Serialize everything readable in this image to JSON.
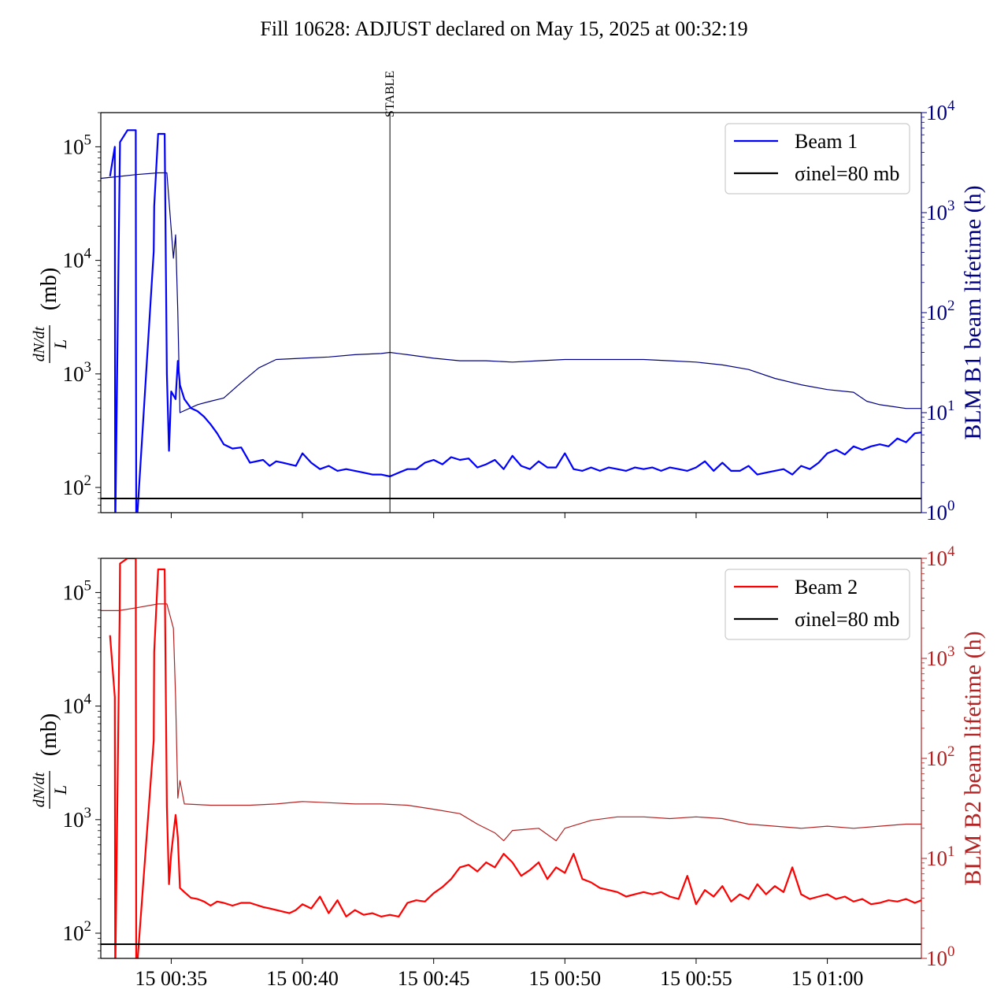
{
  "figure": {
    "title": "Fill 10628: ADJUST declared on May 15, 2025 at 00:32:19"
  },
  "colors": {
    "beam1": "#0000ff",
    "beam1_lifetime": "#000080",
    "beam2": "#ff0000",
    "beam2_lifetime": "#b22222",
    "reference": "#000000"
  },
  "chart_data": [
    {
      "type": "line",
      "panel": "top",
      "yscale": "log",
      "ylabel": "dN/dt / L (mb)",
      "ylim": [
        60,
        200000
      ],
      "y_ticks": [
        100,
        1000,
        10000,
        100000
      ],
      "y_tick_labels": [
        "10^2",
        "10^3",
        "10^4",
        "10^5"
      ],
      "y2label": "BLM B1 beam lifetime (h)",
      "y2scale": "log",
      "y2lim": [
        1,
        10000
      ],
      "y2_ticks": [
        1,
        10,
        100,
        1000,
        10000
      ],
      "y2_tick_labels": [
        "10^0",
        "10^1",
        "10^2",
        "10^3",
        "10^4"
      ],
      "xlim": [
        "00:32:19",
        "01:03:35"
      ],
      "x_ticks": [
        "00:35:00",
        "00:40:00",
        "00:45:00",
        "00:50:00",
        "00:55:00",
        "01:00:00"
      ],
      "x_tick_labels": [],
      "grid": false,
      "legend_position": "top-right",
      "vline": {
        "x": "00:43:20",
        "label": "STABLE"
      },
      "hline": {
        "y": 80,
        "name": "σinel=80 mb"
      },
      "legend": [
        {
          "label": "Beam 1",
          "color": "#0000ff"
        },
        {
          "label": "σinel=80 mb",
          "color": "#000000"
        }
      ],
      "series": [
        {
          "name": "Beam 1",
          "axis": "left",
          "color": "#0000ff",
          "x": [
            "00:32:40",
            "00:32:51",
            "00:32:52",
            "00:33:02",
            "00:33:03",
            "00:33:20",
            "00:33:39",
            "00:33:40",
            "00:34:20",
            "00:34:21",
            "00:34:30",
            "00:34:45",
            "00:34:50",
            "00:34:55",
            "00:35:00",
            "00:35:10",
            "00:35:15",
            "00:35:20",
            "00:35:30",
            "00:35:45",
            "00:36:00",
            "00:36:15",
            "00:36:30",
            "00:36:45",
            "00:37:00",
            "00:37:20",
            "00:37:40",
            "00:38:00",
            "00:38:30",
            "00:38:45",
            "00:39:00",
            "00:39:15",
            "00:39:30",
            "00:39:45",
            "00:40:00",
            "00:40:20",
            "00:40:40",
            "00:41:00",
            "00:41:20",
            "00:41:40",
            "00:42:00",
            "00:42:20",
            "00:42:40",
            "00:43:00",
            "00:43:20",
            "00:43:40",
            "00:44:00",
            "00:44:20",
            "00:44:40",
            "00:45:00",
            "00:45:20",
            "00:45:40",
            "00:46:00",
            "00:46:20",
            "00:46:40",
            "00:47:00",
            "00:47:20",
            "00:47:40",
            "00:48:00",
            "00:48:20",
            "00:48:40",
            "00:49:00",
            "00:49:20",
            "00:49:40",
            "00:50:00",
            "00:50:20",
            "00:50:40",
            "00:51:00",
            "00:51:20",
            "00:51:40",
            "00:52:00",
            "00:52:20",
            "00:52:40",
            "00:53:00",
            "00:53:20",
            "00:53:40",
            "00:54:00",
            "00:54:20",
            "00:54:40",
            "00:55:00",
            "00:55:20",
            "00:55:40",
            "00:56:00",
            "00:56:20",
            "00:56:40",
            "00:57:00",
            "00:57:20",
            "00:57:40",
            "00:58:00",
            "00:58:20",
            "00:58:40",
            "00:59:00",
            "00:59:20",
            "00:59:40",
            "01:00:00",
            "01:00:20",
            "01:00:40",
            "01:01:00",
            "01:01:20",
            "01:01:40",
            "01:02:00",
            "01:02:20",
            "01:02:40",
            "01:03:00",
            "01:03:20",
            "01:03:35"
          ],
          "y": [
            55000,
            100000,
            40,
            60000,
            110000,
            140000,
            140000,
            40,
            12000,
            30000,
            130000,
            130000,
            1000,
            210,
            700,
            600,
            1300,
            800,
            600,
            500,
            470,
            420,
            360,
            300,
            240,
            220,
            225,
            165,
            175,
            155,
            170,
            165,
            160,
            155,
            200,
            165,
            145,
            155,
            140,
            145,
            140,
            135,
            130,
            130,
            125,
            135,
            145,
            145,
            165,
            175,
            160,
            185,
            175,
            180,
            150,
            160,
            175,
            145,
            190,
            155,
            145,
            170,
            150,
            150,
            200,
            145,
            140,
            150,
            140,
            150,
            145,
            140,
            150,
            145,
            150,
            140,
            150,
            145,
            140,
            150,
            170,
            140,
            165,
            140,
            140,
            155,
            130,
            135,
            140,
            145,
            130,
            155,
            145,
            165,
            200,
            215,
            195,
            230,
            215,
            230,
            240,
            230,
            270,
            250,
            300,
            305
          ],
          "note": "values of 40 drop below the axis floor"
        },
        {
          "name": "BLM B1 beam lifetime",
          "axis": "right",
          "color": "#000080",
          "x": [
            "00:32:19",
            "00:33:00",
            "00:33:40",
            "00:34:30",
            "00:34:50",
            "00:35:05",
            "00:35:10",
            "00:35:15",
            "00:35:20",
            "00:36:00",
            "00:36:30",
            "00:37:00",
            "00:37:40",
            "00:38:20",
            "00:39:00",
            "00:40:00",
            "00:41:00",
            "00:42:00",
            "00:43:00",
            "00:43:20",
            "00:44:00",
            "00:45:00",
            "00:46:00",
            "00:47:00",
            "00:48:00",
            "00:49:00",
            "00:50:00",
            "00:51:00",
            "00:52:00",
            "00:53:00",
            "00:54:00",
            "00:55:00",
            "00:56:00",
            "00:57:00",
            "00:58:00",
            "00:59:00",
            "01:00:00",
            "01:01:00",
            "01:01:30",
            "01:02:00",
            "01:03:00",
            "01:03:35"
          ],
          "y": [
            2200,
            2300,
            2400,
            2500,
            2500,
            350,
            600,
            100,
            10,
            12,
            13,
            14,
            20,
            28,
            34,
            35,
            36,
            38,
            39,
            40,
            38,
            35,
            33,
            33,
            32,
            33,
            34,
            34,
            34,
            34,
            33,
            32,
            30,
            27,
            22,
            19,
            17,
            16,
            13,
            12,
            11,
            11
          ]
        }
      ]
    },
    {
      "type": "line",
      "panel": "bottom",
      "yscale": "log",
      "ylabel": "dN/dt / L (mb)",
      "ylim": [
        60,
        200000
      ],
      "y_ticks": [
        100,
        1000,
        10000,
        100000
      ],
      "y_tick_labels": [
        "10^2",
        "10^3",
        "10^4",
        "10^5"
      ],
      "y2label": "BLM B2 beam lifetime (h)",
      "y2scale": "log",
      "y2lim": [
        1,
        10000
      ],
      "y2_ticks": [
        1,
        10,
        100,
        1000,
        10000
      ],
      "y2_tick_labels": [
        "10^0",
        "10^1",
        "10^2",
        "10^3",
        "10^4"
      ],
      "xlim": [
        "00:32:19",
        "01:03:35"
      ],
      "x_ticks": [
        "00:35:00",
        "00:40:00",
        "00:45:00",
        "00:50:00",
        "00:55:00",
        "01:00:00"
      ],
      "x_tick_labels": [
        "15 00:35",
        "15 00:40",
        "15 00:45",
        "15 00:50",
        "15 00:55",
        "15 01:00"
      ],
      "grid": false,
      "legend_position": "top-right",
      "hline": {
        "y": 80,
        "name": "σinel=80 mb"
      },
      "legend": [
        {
          "label": "Beam 2",
          "color": "#ff0000"
        },
        {
          "label": "σinel=80 mb",
          "color": "#000000"
        }
      ],
      "series": [
        {
          "name": "Beam 2",
          "axis": "left",
          "color": "#ff0000",
          "x": [
            "00:32:40",
            "00:32:51",
            "00:32:52",
            "00:33:02",
            "00:33:03",
            "00:33:20",
            "00:33:39",
            "00:33:40",
            "00:34:20",
            "00:34:21",
            "00:34:30",
            "00:34:45",
            "00:34:50",
            "00:34:55",
            "00:35:00",
            "00:35:10",
            "00:35:15",
            "00:35:20",
            "00:35:30",
            "00:35:45",
            "00:36:00",
            "00:36:15",
            "00:36:30",
            "00:36:45",
            "00:37:00",
            "00:37:20",
            "00:37:40",
            "00:38:00",
            "00:38:30",
            "00:38:45",
            "00:39:00",
            "00:39:15",
            "00:39:30",
            "00:39:45",
            "00:40:00",
            "00:40:20",
            "00:40:40",
            "00:41:00",
            "00:41:20",
            "00:41:40",
            "00:42:00",
            "00:42:20",
            "00:42:40",
            "00:43:00",
            "00:43:20",
            "00:43:40",
            "00:44:00",
            "00:44:20",
            "00:44:40",
            "00:45:00",
            "00:45:20",
            "00:45:40",
            "00:46:00",
            "00:46:20",
            "00:46:40",
            "00:47:00",
            "00:47:20",
            "00:47:40",
            "00:48:00",
            "00:48:20",
            "00:48:40",
            "00:49:00",
            "00:49:20",
            "00:49:40",
            "00:50:00",
            "00:50:20",
            "00:50:40",
            "00:51:00",
            "00:51:20",
            "00:51:40",
            "00:52:00",
            "00:52:20",
            "00:52:40",
            "00:53:00",
            "00:53:20",
            "00:53:40",
            "00:54:00",
            "00:54:20",
            "00:54:40",
            "00:55:00",
            "00:55:20",
            "00:55:40",
            "00:56:00",
            "00:56:20",
            "00:56:40",
            "00:57:00",
            "00:57:20",
            "00:57:40",
            "00:58:00",
            "00:58:20",
            "00:58:40",
            "00:59:00",
            "00:59:20",
            "00:59:40",
            "01:00:00",
            "01:00:20",
            "01:00:40",
            "01:01:00",
            "01:01:20",
            "01:01:40",
            "01:02:00",
            "01:02:20",
            "01:02:40",
            "01:03:00",
            "01:03:20",
            "01:03:35"
          ],
          "y": [
            42000,
            12000,
            40,
            60000,
            180000,
            200000,
            200000,
            40,
            5000,
            30000,
            160000,
            160000,
            1300,
            270,
            500,
            1100,
            700,
            250,
            230,
            205,
            200,
            190,
            175,
            190,
            185,
            175,
            185,
            185,
            170,
            165,
            160,
            155,
            150,
            160,
            180,
            165,
            210,
            150,
            195,
            140,
            160,
            145,
            150,
            140,
            145,
            140,
            185,
            195,
            190,
            225,
            255,
            300,
            380,
            400,
            350,
            420,
            380,
            500,
            420,
            320,
            360,
            420,
            300,
            380,
            340,
            500,
            300,
            280,
            250,
            240,
            230,
            210,
            220,
            230,
            220,
            230,
            210,
            200,
            320,
            180,
            240,
            210,
            260,
            190,
            220,
            200,
            270,
            220,
            260,
            230,
            380,
            220,
            200,
            210,
            220,
            200,
            210,
            190,
            200,
            180,
            185,
            195,
            190,
            200,
            185,
            195
          ]
        },
        {
          "name": "BLM B2 beam lifetime",
          "axis": "right",
          "color": "#b22222",
          "x": [
            "00:32:19",
            "00:33:00",
            "00:33:40",
            "00:34:30",
            "00:34:50",
            "00:35:05",
            "00:35:10",
            "00:35:15",
            "00:35:20",
            "00:35:30",
            "00:36:30",
            "00:38:00",
            "00:39:00",
            "00:40:00",
            "00:41:00",
            "00:42:00",
            "00:43:00",
            "00:44:00",
            "00:45:00",
            "00:46:00",
            "00:46:40",
            "00:47:20",
            "00:47:40",
            "00:48:00",
            "00:49:00",
            "00:49:40",
            "00:50:00",
            "00:51:00",
            "00:52:00",
            "00:53:00",
            "00:54:00",
            "00:55:00",
            "00:56:00",
            "00:57:00",
            "00:58:00",
            "00:59:00",
            "01:00:00",
            "01:01:00",
            "01:02:00",
            "01:03:00",
            "01:03:35"
          ],
          "y": [
            3000,
            3000,
            3200,
            3500,
            3500,
            2000,
            400,
            40,
            60,
            35,
            34,
            34,
            35,
            37,
            36,
            35,
            35,
            34,
            31,
            28,
            22,
            18,
            15,
            19,
            20,
            15,
            20,
            24,
            26,
            26,
            25,
            26,
            25,
            22,
            21,
            20,
            21,
            20,
            21,
            22,
            22
          ]
        }
      ]
    }
  ]
}
